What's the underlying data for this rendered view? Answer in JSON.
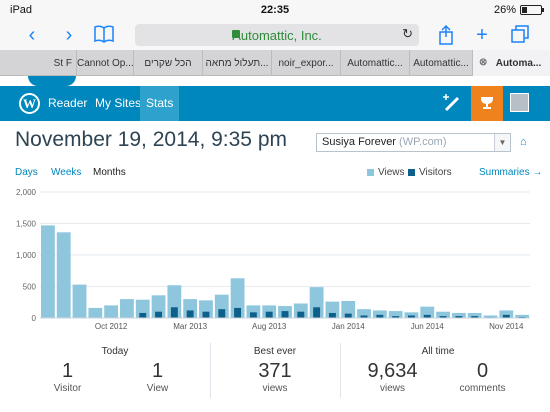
{
  "status_bar": {
    "device": "iPad",
    "time": "22:35",
    "battery": "26%",
    "battery_level": 0.26
  },
  "browser": {
    "url": "Automattic, Inc.",
    "tabs": [
      "St F",
      "Cannot Op...",
      "הכל שקרים",
      "תעלול מחאה...",
      "noir_expor...",
      "Automattic...",
      "Automattic...",
      "Automa..."
    ],
    "active_tab_index": 7
  },
  "nav": {
    "reader": "Reader",
    "my_sites": "My Sites",
    "stats": "Stats"
  },
  "header": {
    "date": "November 19, 2014, 9:35 pm",
    "site_name": "Susiya Forever",
    "site_host": "(WP.com)"
  },
  "periods": {
    "days": "Days",
    "weeks": "Weeks",
    "months": "Months",
    "selected": "Months"
  },
  "legend": {
    "views": "Views",
    "visitors": "Visitors",
    "summaries": "Summaries →"
  },
  "colors": {
    "views": "#8dc6dd",
    "visitors": "#0e5f8a",
    "nav": "#0087be",
    "accent": "#f0821e"
  },
  "chart_data": {
    "type": "bar",
    "y_ticks": [
      "2,000",
      "1,500",
      "1,000",
      "500",
      "0"
    ],
    "ylim": [
      0,
      2000
    ],
    "x_labels": [
      {
        "label": "Oct 2012",
        "index": 4
      },
      {
        "label": "Mar 2013",
        "index": 9
      },
      {
        "label": "Aug 2013",
        "index": 14
      },
      {
        "label": "Jan 2014",
        "index": 19
      },
      {
        "label": "Jun 2014",
        "index": 24
      },
      {
        "label": "Nov 2014",
        "index": 29
      }
    ],
    "series": [
      {
        "name": "Views",
        "values": [
          1470,
          1360,
          530,
          160,
          200,
          300,
          290,
          360,
          520,
          300,
          280,
          370,
          630,
          200,
          200,
          190,
          230,
          490,
          260,
          270,
          140,
          120,
          110,
          90,
          180,
          100,
          80,
          80,
          40,
          120,
          50
        ]
      },
      {
        "name": "Visitors",
        "values": [
          0,
          0,
          0,
          0,
          0,
          0,
          80,
          100,
          170,
          120,
          100,
          140,
          160,
          90,
          100,
          110,
          100,
          170,
          80,
          70,
          40,
          50,
          30,
          40,
          50,
          30,
          30,
          30,
          10,
          50,
          15
        ]
      }
    ]
  },
  "summary": {
    "today": {
      "heading": "Today",
      "visitor_count": "1",
      "visitor_label": "Visitor",
      "view_count": "1",
      "view_label": "View"
    },
    "best_ever": {
      "heading": "Best ever",
      "count": "371",
      "label": "views"
    },
    "all_time": {
      "heading": "All time",
      "views": "9,634",
      "views_label": "views",
      "comments": "0",
      "comments_label": "comments"
    }
  }
}
